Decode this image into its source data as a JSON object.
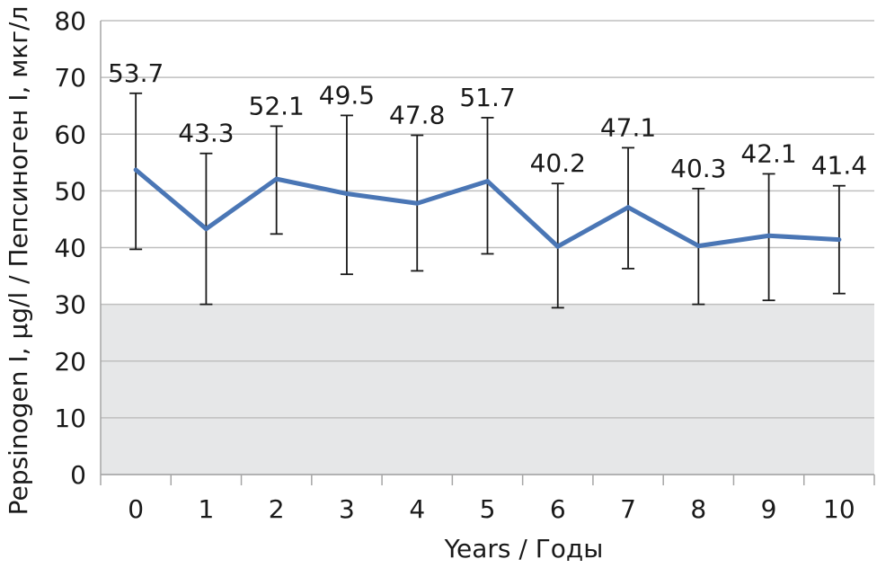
{
  "chart_data": {
    "type": "line",
    "title": "",
    "xlabel": "Years / Годы",
    "ylabel": "Pepsinogen I, µg/l / Пепсиноген I, мкг/л",
    "categories": [
      "0",
      "1",
      "2",
      "3",
      "4",
      "5",
      "6",
      "7",
      "8",
      "9",
      "10"
    ],
    "series": [
      {
        "values": [
          53.7,
          43.3,
          52.1,
          49.5,
          47.8,
          51.7,
          40.2,
          47.1,
          40.3,
          42.1,
          41.4
        ],
        "error_low": [
          39.7,
          30.0,
          42.4,
          35.3,
          35.9,
          38.9,
          29.4,
          36.3,
          30.0,
          30.7,
          31.9
        ],
        "error_high": [
          67.2,
          56.6,
          61.4,
          63.3,
          59.8,
          62.9,
          51.3,
          57.6,
          50.4,
          53.0,
          50.9
        ],
        "data_labels": [
          "53.7",
          "43.3",
          "52.1",
          "49.5",
          "47.8",
          "51.7",
          "40.2",
          "47.1",
          "40.3",
          "42.1",
          "41.4"
        ]
      }
    ],
    "yticks": [
      "0",
      "10",
      "20",
      "30",
      "40",
      "50",
      "60",
      "70",
      "80"
    ],
    "ylim": [
      0,
      80
    ],
    "shaded_band": [
      0,
      30
    ],
    "grid": true,
    "legend": "none",
    "colors": {
      "line": "#4a76b5",
      "error_bar": "#1a1a1a",
      "grid": "#bfbfbf",
      "band": "#e6e7e8",
      "axis": "#a6a6a6"
    }
  }
}
